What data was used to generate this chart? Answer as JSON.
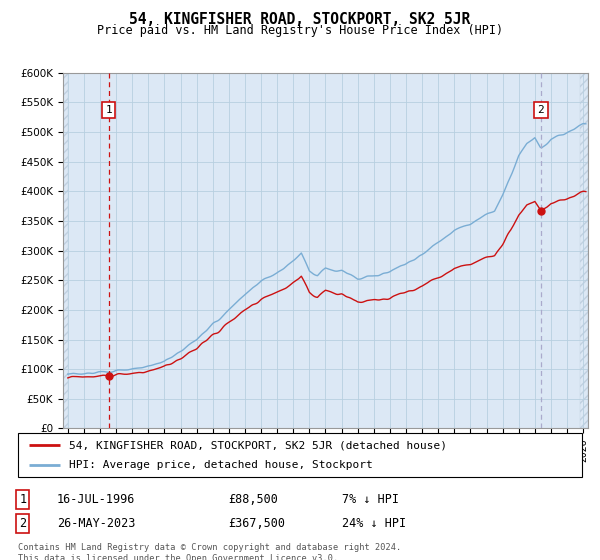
{
  "title": "54, KINGFISHER ROAD, STOCKPORT, SK2 5JR",
  "subtitle": "Price paid vs. HM Land Registry's House Price Index (HPI)",
  "sale1_year": 1996.542,
  "sale1_price": 88500,
  "sale2_year": 2023.375,
  "sale2_price": 367500,
  "hpi_color": "#7aadd4",
  "price_color": "#cc1111",
  "vline1_color": "#cc1111",
  "vline2_color": "#aaaacc",
  "legend1": "54, KINGFISHER ROAD, STOCKPORT, SK2 5JR (detached house)",
  "legend2": "HPI: Average price, detached house, Stockport",
  "table_row1": [
    "1",
    "16-JUL-1996",
    "£88,500",
    "7% ↓ HPI"
  ],
  "table_row2": [
    "2",
    "26-MAY-2023",
    "£367,500",
    "24% ↓ HPI"
  ],
  "footnote": "Contains HM Land Registry data © Crown copyright and database right 2024.\nThis data is licensed under the Open Government Licence v3.0.",
  "ylim": [
    0,
    600000
  ],
  "yticks": [
    0,
    50000,
    100000,
    150000,
    200000,
    250000,
    300000,
    350000,
    400000,
    450000,
    500000,
    550000,
    600000
  ],
  "xlim_start": 1993.7,
  "xlim_end": 2026.3,
  "bg_color": "#dce8f5",
  "hatch_color": "#c0d0e0"
}
